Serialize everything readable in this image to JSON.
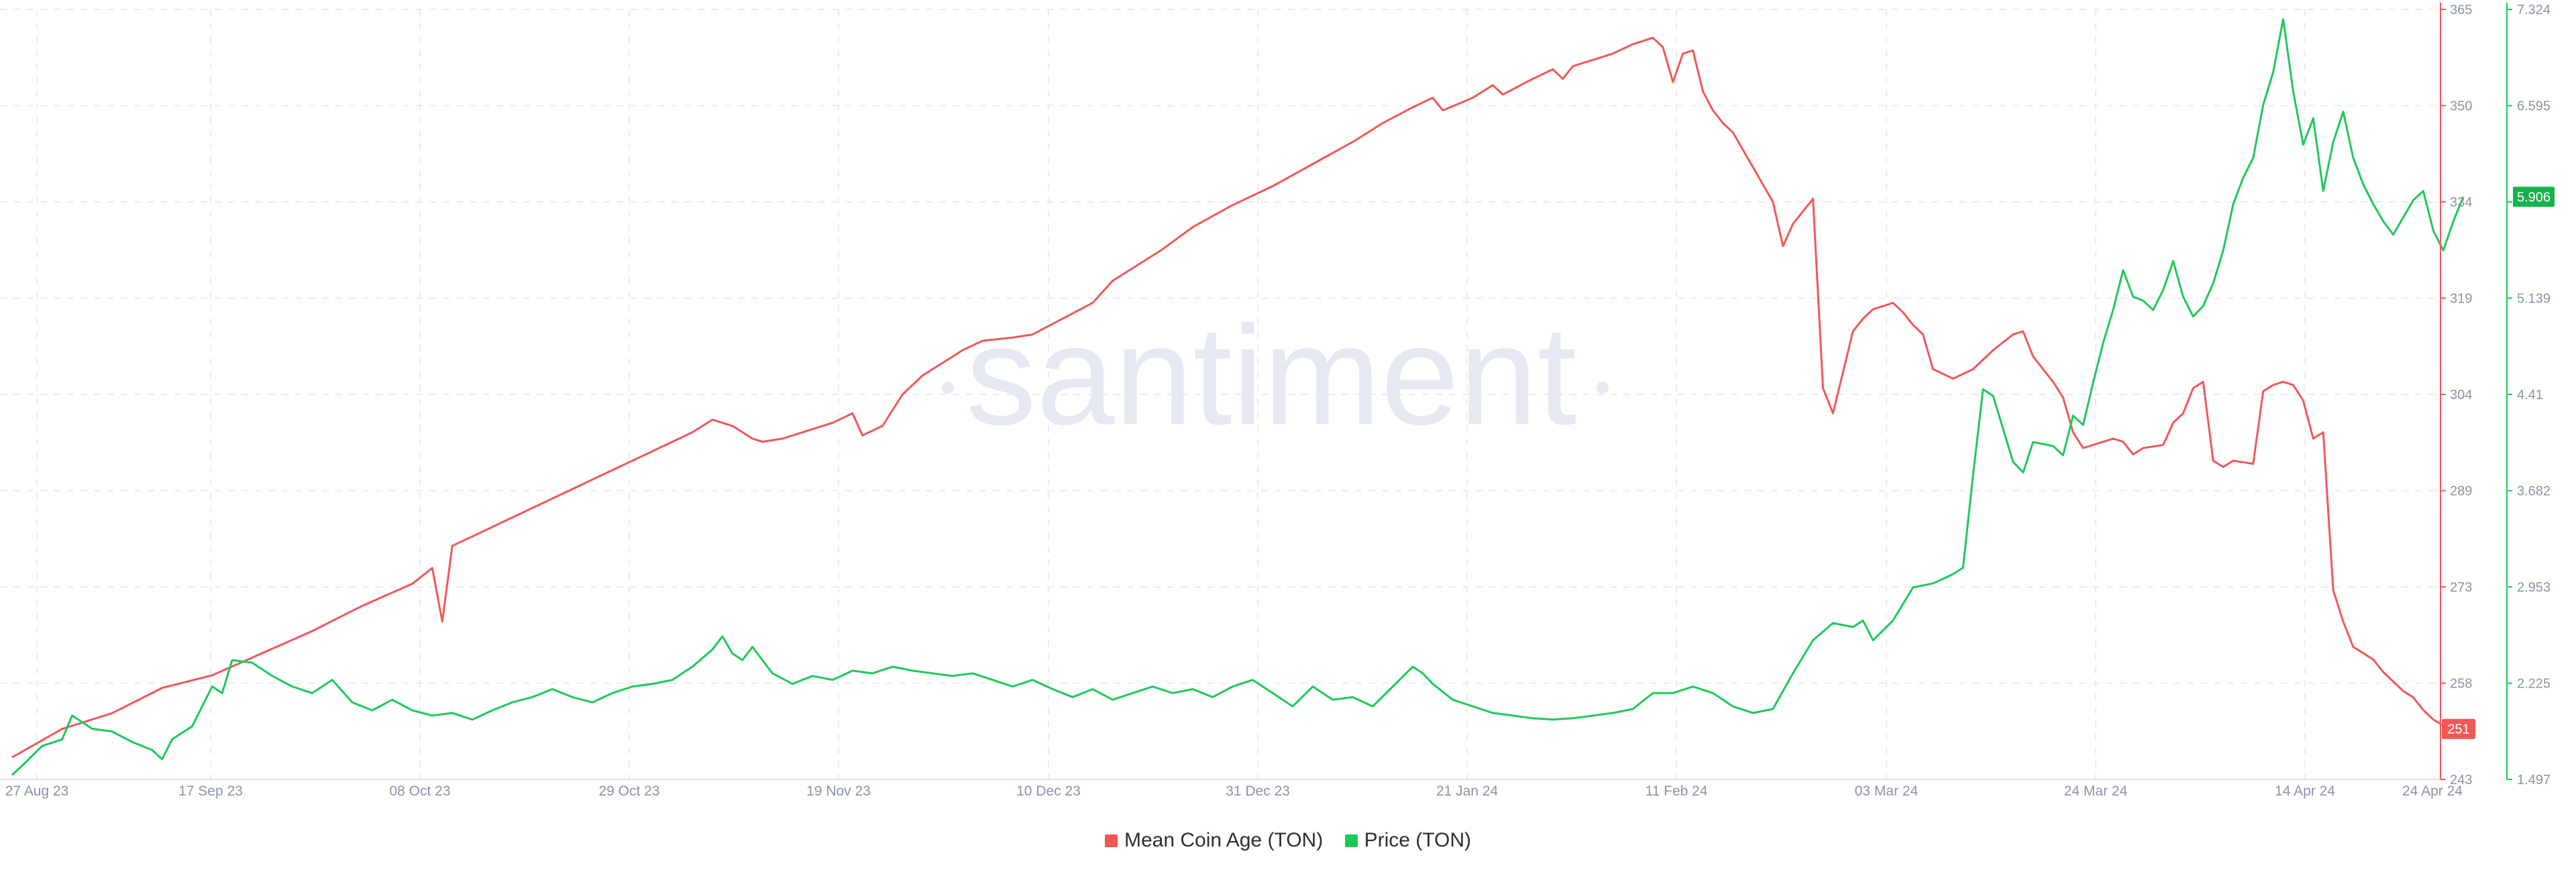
{
  "chart_data": {
    "type": "line",
    "watermark": "santiment",
    "x_labels": [
      "27 Aug 23",
      "17 Sep 23",
      "08 Oct 23",
      "29 Oct 23",
      "19 Nov 23",
      "10 Dec 23",
      "31 Dec 23",
      "21 Jan 24",
      "11 Feb 24",
      "03 Mar 24",
      "24 Mar 24",
      "14 Apr 24",
      "24 Apr 24"
    ],
    "x_range_days": [
      0,
      245
    ],
    "left_axis": {
      "ticks": [
        "365",
        "350",
        "334",
        "319",
        "304",
        "289",
        "273",
        "258",
        "243"
      ],
      "range": [
        243,
        365
      ]
    },
    "right_axis": {
      "ticks": [
        "7.324",
        "6.595",
        "5.906",
        "5.139",
        "4.41",
        "3.682",
        "2.953",
        "2.225",
        "1.497"
      ],
      "range": [
        1.497,
        7.324
      ]
    },
    "series": [
      {
        "name": "Mean Coin Age (TON)",
        "color": "#f25757",
        "axis": "left",
        "last_value": "251",
        "points": [
          [
            0,
            246.5
          ],
          [
            5,
            251
          ],
          [
            10,
            253.5
          ],
          [
            15,
            257.5
          ],
          [
            20,
            259.5
          ],
          [
            25,
            263
          ],
          [
            30,
            266.5
          ],
          [
            35,
            270.5
          ],
          [
            40,
            274
          ],
          [
            42,
            276.5
          ],
          [
            43,
            268
          ],
          [
            44,
            280
          ],
          [
            48,
            283
          ],
          [
            52,
            286
          ],
          [
            56,
            289
          ],
          [
            60,
            292
          ],
          [
            64,
            295
          ],
          [
            68,
            298
          ],
          [
            70,
            300
          ],
          [
            72,
            299
          ],
          [
            74,
            297
          ],
          [
            75,
            296.5
          ],
          [
            77,
            297
          ],
          [
            80,
            298.5
          ],
          [
            82,
            299.5
          ],
          [
            84,
            301
          ],
          [
            85,
            297.5
          ],
          [
            87,
            299
          ],
          [
            89,
            304
          ],
          [
            91,
            307
          ],
          [
            93,
            309
          ],
          [
            95,
            311
          ],
          [
            97,
            312.5
          ],
          [
            100,
            313
          ],
          [
            102,
            313.5
          ],
          [
            105,
            316
          ],
          [
            108,
            318.5
          ],
          [
            110,
            322
          ],
          [
            113,
            325
          ],
          [
            115,
            327
          ],
          [
            118,
            330.5
          ],
          [
            122,
            334
          ],
          [
            126,
            337
          ],
          [
            130,
            340.5
          ],
          [
            134,
            344
          ],
          [
            137,
            347
          ],
          [
            140,
            349.5
          ],
          [
            142,
            351
          ],
          [
            143,
            349
          ],
          [
            146,
            351
          ],
          [
            148,
            353
          ],
          [
            149,
            351.5
          ],
          [
            152,
            354
          ],
          [
            154,
            355.5
          ],
          [
            155,
            354
          ],
          [
            156,
            356
          ],
          [
            158,
            357
          ],
          [
            160,
            358
          ],
          [
            162,
            359.5
          ],
          [
            164,
            360.5
          ],
          [
            165,
            359
          ],
          [
            166,
            353.5
          ],
          [
            167,
            358
          ],
          [
            168,
            358.5
          ],
          [
            169,
            352
          ],
          [
            170,
            349
          ],
          [
            171,
            347
          ],
          [
            172,
            345.5
          ],
          [
            174,
            340
          ],
          [
            176,
            334.5
          ],
          [
            177,
            327.5
          ],
          [
            178,
            331
          ],
          [
            179,
            333
          ],
          [
            180,
            335
          ],
          [
            181,
            305
          ],
          [
            182,
            301
          ],
          [
            184,
            314
          ],
          [
            185,
            316
          ],
          [
            186,
            317.5
          ],
          [
            188,
            318.5
          ],
          [
            189,
            317
          ],
          [
            190,
            315
          ],
          [
            191,
            313.5
          ],
          [
            192,
            308
          ],
          [
            194,
            306.5
          ],
          [
            196,
            308
          ],
          [
            198,
            311
          ],
          [
            200,
            313.5
          ],
          [
            201,
            314
          ],
          [
            202,
            310
          ],
          [
            204,
            306
          ],
          [
            205,
            303.5
          ],
          [
            206,
            298
          ],
          [
            207,
            295.5
          ],
          [
            208,
            296
          ],
          [
            210,
            297
          ],
          [
            211,
            296.5
          ],
          [
            212,
            294.5
          ],
          [
            213,
            295.5
          ],
          [
            215,
            296
          ],
          [
            216,
            299.5
          ],
          [
            217,
            301
          ],
          [
            218,
            305
          ],
          [
            219,
            306
          ],
          [
            220,
            293.5
          ],
          [
            221,
            292.5
          ],
          [
            222,
            293.5
          ],
          [
            224,
            293
          ],
          [
            225,
            304.5
          ],
          [
            226,
            305.5
          ],
          [
            227,
            306
          ],
          [
            228,
            305.5
          ],
          [
            229,
            303
          ],
          [
            230,
            297
          ],
          [
            231,
            298
          ],
          [
            232,
            273
          ],
          [
            233,
            268
          ],
          [
            234,
            264
          ],
          [
            235,
            263
          ],
          [
            236,
            262
          ],
          [
            237,
            260
          ],
          [
            238,
            258.5
          ],
          [
            239,
            257
          ],
          [
            240,
            256
          ],
          [
            241,
            254
          ],
          [
            242,
            252.5
          ],
          [
            243,
            251.5
          ],
          [
            244,
            250.5
          ],
          [
            245,
            251
          ]
        ]
      },
      {
        "name": "Price (TON)",
        "color": "#1ec95a",
        "axis": "right",
        "last_value": "5.906",
        "points": [
          [
            0,
            1.53
          ],
          [
            1,
            1.6
          ],
          [
            3,
            1.75
          ],
          [
            5,
            1.8
          ],
          [
            6,
            1.98
          ],
          [
            8,
            1.88
          ],
          [
            10,
            1.86
          ],
          [
            12,
            1.78
          ],
          [
            14,
            1.72
          ],
          [
            15,
            1.65
          ],
          [
            16,
            1.8
          ],
          [
            18,
            1.9
          ],
          [
            20,
            2.2
          ],
          [
            21,
            2.15
          ],
          [
            22,
            2.4
          ],
          [
            24,
            2.38
          ],
          [
            26,
            2.28
          ],
          [
            28,
            2.2
          ],
          [
            30,
            2.15
          ],
          [
            32,
            2.25
          ],
          [
            34,
            2.08
          ],
          [
            36,
            2.02
          ],
          [
            38,
            2.1
          ],
          [
            40,
            2.02
          ],
          [
            42,
            1.98
          ],
          [
            44,
            2.0
          ],
          [
            46,
            1.95
          ],
          [
            48,
            2.02
          ],
          [
            50,
            2.08
          ],
          [
            52,
            2.12
          ],
          [
            54,
            2.18
          ],
          [
            56,
            2.12
          ],
          [
            58,
            2.08
          ],
          [
            60,
            2.15
          ],
          [
            62,
            2.2
          ],
          [
            64,
            2.22
          ],
          [
            66,
            2.25
          ],
          [
            68,
            2.35
          ],
          [
            70,
            2.48
          ],
          [
            71,
            2.58
          ],
          [
            72,
            2.45
          ],
          [
            73,
            2.4
          ],
          [
            74,
            2.5
          ],
          [
            76,
            2.3
          ],
          [
            78,
            2.22
          ],
          [
            80,
            2.28
          ],
          [
            82,
            2.25
          ],
          [
            84,
            2.32
          ],
          [
            86,
            2.3
          ],
          [
            88,
            2.35
          ],
          [
            90,
            2.32
          ],
          [
            92,
            2.3
          ],
          [
            94,
            2.28
          ],
          [
            96,
            2.3
          ],
          [
            98,
            2.25
          ],
          [
            100,
            2.2
          ],
          [
            102,
            2.25
          ],
          [
            104,
            2.18
          ],
          [
            106,
            2.12
          ],
          [
            108,
            2.18
          ],
          [
            110,
            2.1
          ],
          [
            112,
            2.15
          ],
          [
            114,
            2.2
          ],
          [
            116,
            2.15
          ],
          [
            118,
            2.18
          ],
          [
            120,
            2.12
          ],
          [
            122,
            2.2
          ],
          [
            124,
            2.25
          ],
          [
            126,
            2.15
          ],
          [
            128,
            2.05
          ],
          [
            130,
            2.2
          ],
          [
            132,
            2.1
          ],
          [
            134,
            2.12
          ],
          [
            136,
            2.05
          ],
          [
            138,
            2.2
          ],
          [
            140,
            2.35
          ],
          [
            141,
            2.3
          ],
          [
            142,
            2.22
          ],
          [
            144,
            2.1
          ],
          [
            146,
            2.05
          ],
          [
            148,
            2.0
          ],
          [
            150,
            1.98
          ],
          [
            152,
            1.96
          ],
          [
            154,
            1.95
          ],
          [
            156,
            1.96
          ],
          [
            158,
            1.98
          ],
          [
            160,
            2.0
          ],
          [
            162,
            2.03
          ],
          [
            164,
            2.15
          ],
          [
            166,
            2.15
          ],
          [
            168,
            2.2
          ],
          [
            170,
            2.15
          ],
          [
            172,
            2.05
          ],
          [
            174,
            2.0
          ],
          [
            176,
            2.03
          ],
          [
            178,
            2.3
          ],
          [
            180,
            2.55
          ],
          [
            182,
            2.68
          ],
          [
            184,
            2.65
          ],
          [
            185,
            2.7
          ],
          [
            186,
            2.55
          ],
          [
            188,
            2.7
          ],
          [
            190,
            2.95
          ],
          [
            192,
            2.98
          ],
          [
            194,
            3.05
          ],
          [
            195,
            3.1
          ],
          [
            196,
            3.8
          ],
          [
            197,
            4.45
          ],
          [
            198,
            4.4
          ],
          [
            200,
            3.9
          ],
          [
            201,
            3.82
          ],
          [
            202,
            4.05
          ],
          [
            204,
            4.02
          ],
          [
            205,
            3.95
          ],
          [
            206,
            4.25
          ],
          [
            207,
            4.18
          ],
          [
            208,
            4.5
          ],
          [
            209,
            4.8
          ],
          [
            210,
            5.05
          ],
          [
            211,
            5.35
          ],
          [
            212,
            5.15
          ],
          [
            213,
            5.12
          ],
          [
            214,
            5.05
          ],
          [
            215,
            5.2
          ],
          [
            216,
            5.42
          ],
          [
            217,
            5.15
          ],
          [
            218,
            5.0
          ],
          [
            219,
            5.08
          ],
          [
            220,
            5.25
          ],
          [
            221,
            5.5
          ],
          [
            222,
            5.85
          ],
          [
            223,
            6.05
          ],
          [
            224,
            6.2
          ],
          [
            225,
            6.6
          ],
          [
            226,
            6.85
          ],
          [
            227,
            7.25
          ],
          [
            228,
            6.7
          ],
          [
            229,
            6.3
          ],
          [
            230,
            6.5
          ],
          [
            231,
            5.95
          ],
          [
            232,
            6.32
          ],
          [
            233,
            6.55
          ],
          [
            234,
            6.2
          ],
          [
            235,
            6.0
          ],
          [
            236,
            5.85
          ],
          [
            237,
            5.72
          ],
          [
            238,
            5.62
          ],
          [
            239,
            5.75
          ],
          [
            240,
            5.88
          ],
          [
            241,
            5.95
          ],
          [
            242,
            5.65
          ],
          [
            243,
            5.5
          ],
          [
            244,
            5.72
          ],
          [
            245,
            5.906
          ]
        ]
      }
    ],
    "legend_position": "bottom-center",
    "grid": true
  }
}
